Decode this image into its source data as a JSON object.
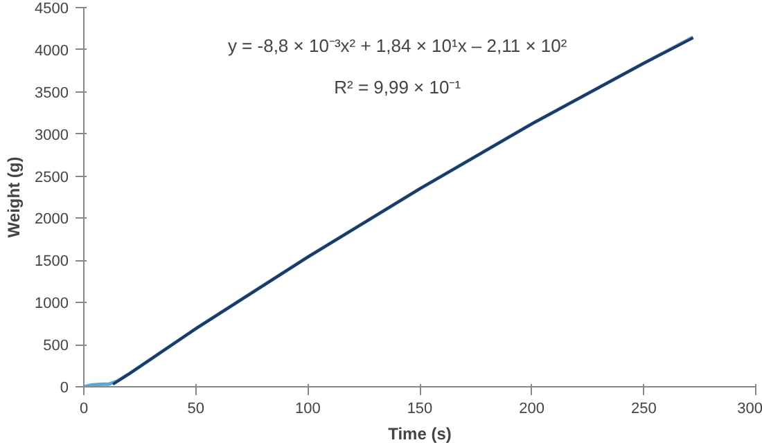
{
  "chart_data": {
    "type": "line",
    "xlabel": "Time (s)",
    "ylabel": "Weight (g)",
    "xlim": [
      0,
      300
    ],
    "xticks": [
      0,
      50,
      100,
      150,
      200,
      250,
      300
    ],
    "ylim": [
      0,
      4500
    ],
    "yticks": [
      0,
      500,
      1000,
      1500,
      2000,
      2500,
      3000,
      3500,
      4000,
      4500
    ],
    "grid": false,
    "marker": "none",
    "line_style": "solid",
    "series": [
      {
        "color": "#5fa8d3",
        "x": [
          0,
          3,
          8,
          11,
          15,
          20,
          30,
          50,
          100,
          150,
          200,
          250,
          272
        ],
        "values": [
          0,
          20,
          30,
          30,
          70,
          150,
          330,
          690,
          1540,
          2350,
          3120,
          3840,
          4150
        ]
      },
      {
        "color": "#1f3864",
        "x": [
          13,
          20,
          30,
          50,
          100,
          150,
          200,
          250,
          272
        ],
        "values": [
          30,
          150,
          330,
          690,
          1540,
          2350,
          3120,
          3840,
          4140
        ]
      }
    ],
    "annotations": [
      "y = -8,8 × 10⁻³x² + 1,84 × 10¹x – 2,11 × 10²",
      "R² = 9,99 × 10⁻¹"
    ]
  }
}
